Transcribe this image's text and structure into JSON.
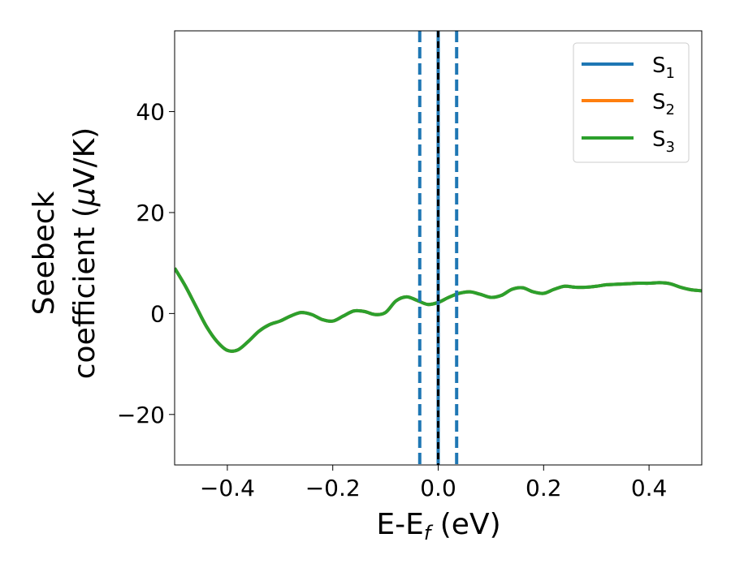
{
  "chart_data": {
    "type": "line",
    "xlabel": "E-E",
    "xlabel_sub": "f",
    "xlabel_unit": " (eV)",
    "ylabel_line1": "Seebeck",
    "ylabel_line2": "coefficient  (",
    "ylabel_mu": "μ",
    "ylabel_unit": "V/K)",
    "xlim": [
      -0.5,
      0.5
    ],
    "ylim": [
      -30,
      56
    ],
    "x_ticks": [
      -0.4,
      -0.2,
      0.0,
      0.2,
      0.4
    ],
    "x_tick_labels": [
      "−0.4",
      "−0.2",
      "0.0",
      "0.2",
      "0.4"
    ],
    "y_ticks": [
      -20,
      0,
      20,
      40
    ],
    "y_tick_labels": [
      "−20",
      "0",
      "20",
      "40"
    ],
    "grid": false,
    "legend_position": "top-right",
    "series": [
      {
        "name": "S",
        "sub": "1",
        "color": "#1f77b4"
      },
      {
        "name": "S",
        "sub": "2",
        "color": "#ff7f0e"
      },
      {
        "name": "S",
        "sub": "3",
        "color": "#2ca02c"
      }
    ],
    "x": [
      -0.5,
      -0.48,
      -0.46,
      -0.44,
      -0.42,
      -0.4,
      -0.38,
      -0.36,
      -0.34,
      -0.32,
      -0.3,
      -0.28,
      -0.26,
      -0.24,
      -0.22,
      -0.2,
      -0.18,
      -0.16,
      -0.14,
      -0.12,
      -0.1,
      -0.08,
      -0.06,
      -0.04,
      -0.02,
      0.0,
      0.02,
      0.04,
      0.06,
      0.08,
      0.1,
      0.12,
      0.14,
      0.16,
      0.18,
      0.2,
      0.22,
      0.24,
      0.26,
      0.28,
      0.3,
      0.32,
      0.34,
      0.36,
      0.38,
      0.4,
      0.42,
      0.44,
      0.46,
      0.48,
      0.5
    ],
    "y": [
      9,
      5.5,
      1.5,
      -2.5,
      -5.5,
      -7.3,
      -7.2,
      -5.5,
      -3.5,
      -2.2,
      -1.5,
      -0.5,
      0.2,
      -0.2,
      -1.2,
      -1.5,
      -0.5,
      0.5,
      0.4,
      -0.2,
      0.2,
      2.5,
      3.3,
      2.6,
      1.8,
      2.2,
      3.2,
      4.0,
      4.3,
      3.8,
      3.2,
      3.6,
      4.8,
      5.1,
      4.3,
      4.0,
      4.8,
      5.4,
      5.2,
      5.2,
      5.4,
      5.7,
      5.8,
      5.9,
      6.0,
      6.0,
      6.1,
      5.9,
      5.2,
      4.7,
      4.5
    ],
    "vlines": [
      {
        "x": -0.035,
        "style": "dashed",
        "color": "#1f77b4"
      },
      {
        "x": 0.035,
        "style": "dashed",
        "color": "#1f77b4"
      },
      {
        "x": 0.0,
        "style": "solid",
        "color": "#1f77b4"
      },
      {
        "x": 0.0,
        "style": "dashed",
        "color": "#000000"
      }
    ]
  }
}
